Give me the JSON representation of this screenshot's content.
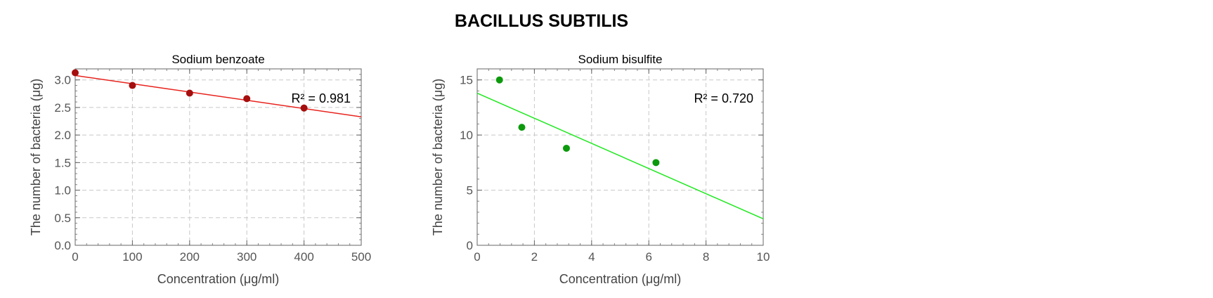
{
  "title": "BACILLUS SUBTILIS",
  "chart_data": [
    {
      "type": "scatter",
      "title": "Sodium benzoate",
      "xlabel": "Concentration (μg/ml)",
      "ylabel": "The number of bacteria (μg)",
      "xlim": [
        0,
        500
      ],
      "ylim": [
        0,
        3.2
      ],
      "xticks": [
        0,
        100,
        200,
        300,
        400,
        500
      ],
      "yticks": [
        0.0,
        0.5,
        1.0,
        1.5,
        2.0,
        2.5,
        3.0
      ],
      "xtick_labels": [
        "0",
        "100",
        "200",
        "300",
        "400",
        "500"
      ],
      "ytick_labels": [
        "0.0",
        "0.5",
        "1.0",
        "1.5",
        "2.0",
        "2.5",
        "3.0"
      ],
      "grid": true,
      "point_color": "#a50e0e",
      "line_color": "#e8221c",
      "x": [
        0,
        100,
        200,
        300,
        400
      ],
      "y": [
        3.13,
        2.9,
        2.76,
        2.66,
        2.49
      ],
      "fit": {
        "intercept": 3.08,
        "slope": -0.0015
      },
      "annotation": "R² = 0.981"
    },
    {
      "type": "scatter",
      "title": "Sodium bisulfite",
      "xlabel": "Concentration (μg/ml)",
      "ylabel": "The number of bacteria (μg)",
      "xlim": [
        0,
        10
      ],
      "ylim": [
        0,
        16
      ],
      "xticks": [
        0,
        2,
        4,
        6,
        8,
        10
      ],
      "yticks": [
        0,
        5,
        10,
        15
      ],
      "xtick_labels": [
        "0",
        "2",
        "4",
        "6",
        "8",
        "10"
      ],
      "ytick_labels": [
        "0",
        "5",
        "10",
        "15"
      ],
      "grid": true,
      "point_color": "#0c9a0c",
      "line_color": "#1fe81f",
      "x": [
        0.78,
        1.56,
        3.12,
        6.25
      ],
      "y": [
        15.0,
        10.7,
        8.8,
        7.5
      ],
      "fit": {
        "intercept": 13.8,
        "slope": -1.14
      },
      "annotation": "R² = 0.720"
    }
  ]
}
